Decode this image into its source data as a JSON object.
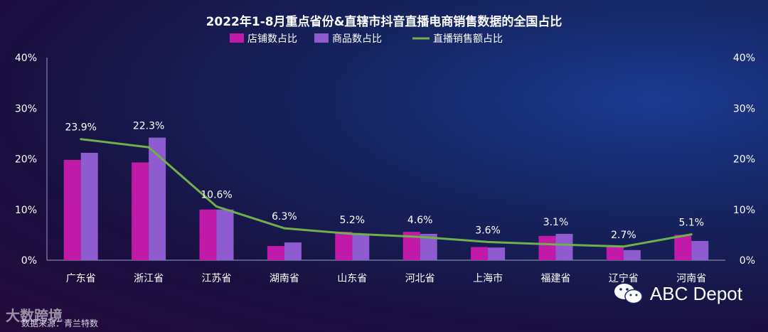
{
  "chart_data": {
    "type": "bar",
    "title": "2022年1-8月重点省份&直辖市抖音直播电商销售数据的全国占比",
    "categories": [
      "广东省",
      "浙江省",
      "江苏省",
      "湖南省",
      "山东省",
      "河北省",
      "上海市",
      "福建省",
      "辽宁省",
      "河南省"
    ],
    "series": [
      {
        "name": "店铺数占比",
        "type": "bar",
        "color": "#c21aa8",
        "values": [
          19.8,
          19.3,
          10.0,
          2.8,
          5.6,
          5.6,
          2.6,
          4.8,
          2.6,
          5.0
        ]
      },
      {
        "name": "商品数占比",
        "type": "bar",
        "color": "#8e5bd1",
        "values": [
          21.2,
          24.2,
          10.0,
          3.5,
          5.1,
          5.2,
          2.5,
          5.2,
          2.0,
          3.8
        ]
      },
      {
        "name": "直播销售额占比",
        "type": "line",
        "color": "#6fb04a",
        "values": [
          23.9,
          22.3,
          10.6,
          6.3,
          5.2,
          4.6,
          3.6,
          3.1,
          2.7,
          5.1
        ]
      }
    ],
    "data_labels": [
      "23.9%",
      "22.3%",
      "10.6%",
      "6.3%",
      "5.2%",
      "4.6%",
      "3.6%",
      "3.1%",
      "2.7%",
      "5.1%"
    ],
    "y_ticks": [
      "0%",
      "10%",
      "20%",
      "30%",
      "40%"
    ],
    "ylim": [
      0,
      40
    ],
    "legend_position": "top-center"
  },
  "watermark": "ABC Depot",
  "source_text": "数据来源：青兰特数",
  "logo_text": "大数跨境"
}
